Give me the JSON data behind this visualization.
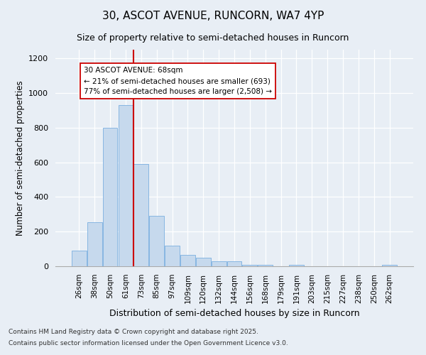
{
  "title1": "30, ASCOT AVENUE, RUNCORN, WA7 4YP",
  "title2": "Size of property relative to semi-detached houses in Runcorn",
  "xlabel": "Distribution of semi-detached houses by size in Runcorn",
  "ylabel": "Number of semi-detached properties",
  "categories": [
    "26sqm",
    "38sqm",
    "50sqm",
    "61sqm",
    "73sqm",
    "85sqm",
    "97sqm",
    "109sqm",
    "120sqm",
    "132sqm",
    "144sqm",
    "156sqm",
    "168sqm",
    "179sqm",
    "191sqm",
    "203sqm",
    "215sqm",
    "227sqm",
    "238sqm",
    "250sqm",
    "262sqm"
  ],
  "values": [
    90,
    255,
    800,
    930,
    590,
    290,
    120,
    65,
    48,
    30,
    28,
    10,
    7,
    0,
    7,
    0,
    0,
    0,
    0,
    0,
    8
  ],
  "bar_color": "#c6d9ed",
  "bar_edge_color": "#7aafe0",
  "property_line_color": "#cc0000",
  "annotation_text": "30 ASCOT AVENUE: 68sqm\n← 21% of semi-detached houses are smaller (693)\n77% of semi-detached houses are larger (2,508) →",
  "annotation_box_color": "#ffffff",
  "annotation_box_edge": "#cc0000",
  "ylim": [
    0,
    1250
  ],
  "yticks": [
    0,
    200,
    400,
    600,
    800,
    1000,
    1200
  ],
  "background_color": "#e8eef5",
  "footer1": "Contains HM Land Registry data © Crown copyright and database right 2025.",
  "footer2": "Contains public sector information licensed under the Open Government Licence v3.0."
}
